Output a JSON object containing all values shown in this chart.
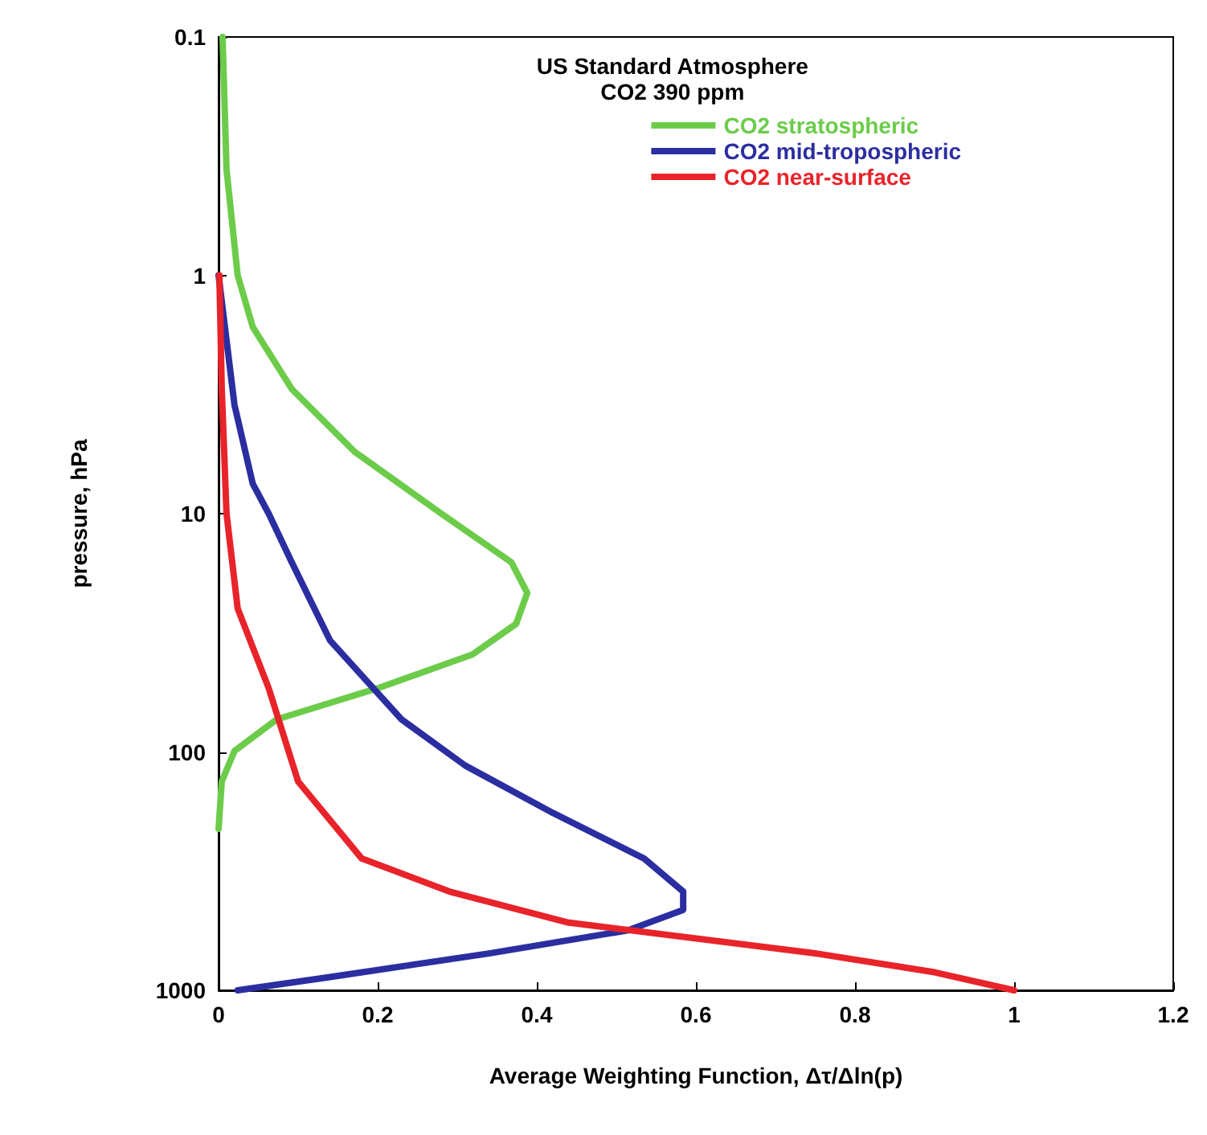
{
  "chart_data": {
    "type": "line",
    "xlabel": "Average Weighting Function, Δτ/Δln(p)",
    "ylabel": "pressure, hPa",
    "legend_title": "US Standard Atmosphere\nCO2 390 ppm",
    "legend": "top right",
    "grid": false,
    "marker": "none",
    "line_style": "solid",
    "log": "y",
    "xlim": [
      0,
      1.2
    ],
    "xticks": [
      0,
      0.2,
      0.4,
      0.6,
      0.8,
      1,
      1.2
    ],
    "ylim": [
      1000,
      0.1
    ],
    "yticks": [
      0.1,
      1,
      10,
      100,
      1000
    ],
    "series": [
      {
        "name": "CO2 stratospheric",
        "color": "#6ccc4a",
        "x": [
          0.005,
          0.01,
          0.024,
          0.043,
          0.092,
          0.171,
          0.28,
          0.368,
          0.388,
          0.374,
          0.319,
          0.2,
          0.073,
          0.02,
          0.004,
          0
        ],
        "values": [
          0.1,
          0.36,
          1,
          1.65,
          3,
          5.5,
          10,
          16,
          21.5,
          29,
          39,
          54,
          73,
          99,
          133,
          210
        ]
      },
      {
        "name": "CO2 mid-tropospheric",
        "color": "#2b2ea0",
        "x": [
          0,
          0.008,
          0.02,
          0.043,
          0.063,
          0.092,
          0.14,
          0.23,
          0.31,
          0.42,
          0.535,
          0.584,
          0.584,
          0.515,
          0.34,
          0.14,
          0.024
        ],
        "values": [
          1,
          1.65,
          3.5,
          7.5,
          10,
          16,
          34,
          73,
          114,
          180,
          280,
          385,
          460,
          560,
          700,
          880,
          1000
        ]
      },
      {
        "name": "CO2 near-surface",
        "color": "#e8232a",
        "x": [
          0.001,
          0.004,
          0.01,
          0.024,
          0.063,
          0.1,
          0.18,
          0.29,
          0.44,
          0.75,
          0.9,
          1
        ],
        "values": [
          1,
          3,
          10,
          25,
          54,
          133,
          280,
          385,
          520,
          700,
          840,
          1000
        ]
      }
    ]
  }
}
